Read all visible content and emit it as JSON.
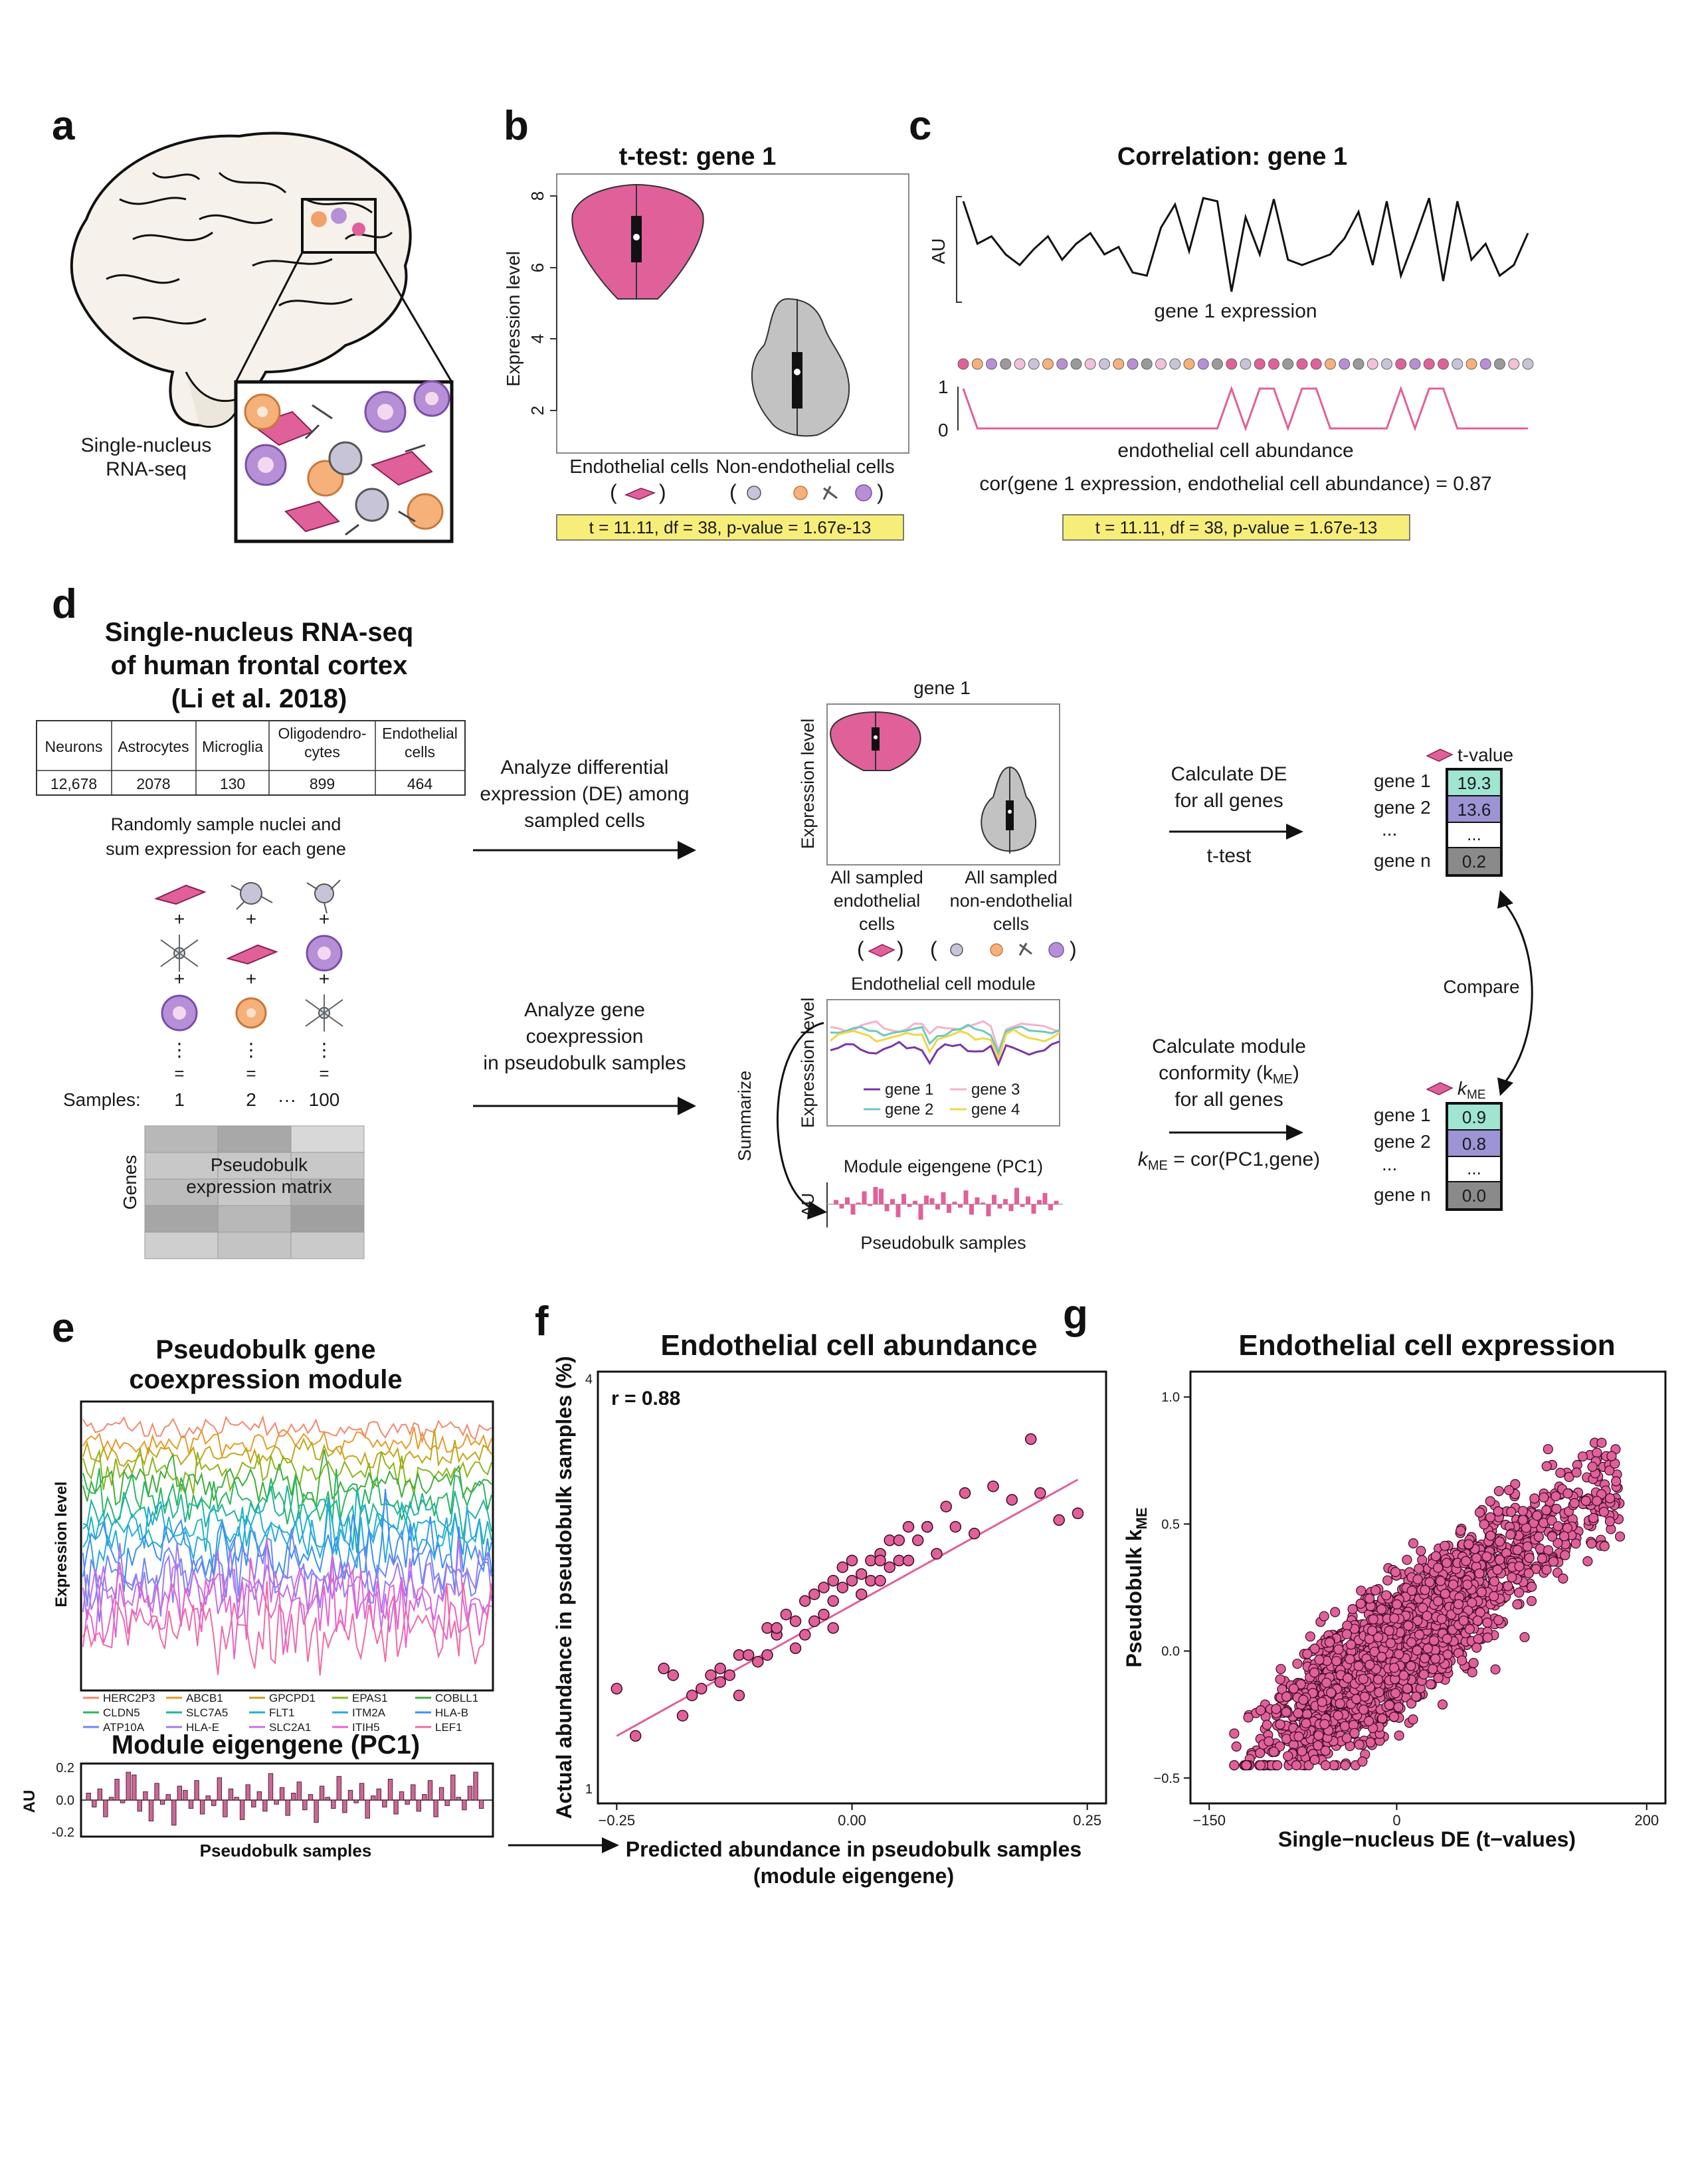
{
  "colors": {
    "endothelial": "#e0609a",
    "grey_violin": "#c2c2c2",
    "stat_box": "#f7ee7a",
    "kme_teal": "#9fe5d2",
    "kme_purple": "#9c94d4",
    "dark_cell": "#8a8a8a"
  },
  "panel_a": {
    "label": "a",
    "caption_line1": "Single-nucleus",
    "caption_line2": "RNA-seq"
  },
  "panel_b": {
    "label": "b",
    "title": "t-test: gene 1",
    "ylabel": "Expression level",
    "yticks": [
      "2",
      "4",
      "6",
      "8"
    ],
    "group1": "Endothelial cells",
    "group2": "Non-endothelial cells",
    "stat": "t = 11.11,  df = 38,  p-value = 1.67e-13"
  },
  "panel_c": {
    "label": "c",
    "title": "Correlation: gene 1",
    "au": "AU",
    "expr_label": "gene 1 expression",
    "tick1": "1",
    "tick0": "0",
    "abund_label": "endothelial cell abundance",
    "cor_text": "cor(gene 1 expression, endothelial cell abundance) = 0.87",
    "stat": "t = 11.11,  df = 38,  p-value = 1.67e-13"
  },
  "panel_d": {
    "label": "d",
    "title_line1": "Single-nucleus RNA-seq",
    "title_line2": "of human frontal cortex",
    "title_line3": "(Li et al. 2018)",
    "table_headers": [
      "Neurons",
      "Astrocytes",
      "Microglia",
      "Oligodendro-\ncytes",
      "Endothelial\ncells"
    ],
    "table_values": [
      "12,678",
      "2078",
      "130",
      "899",
      "464"
    ],
    "sample_text_line1": "Randomly sample nuclei and",
    "sample_text_line2": "sum expression for each gene",
    "samples_label": "Samples:",
    "sample_numbers": [
      "1",
      "2",
      "···",
      "100"
    ],
    "genes_label": "Genes",
    "matrix_line1": "Pseudobulk",
    "matrix_line2": "expression matrix",
    "de_arrow_line1": "Analyze differential",
    "de_arrow_line2": "expression (DE) among",
    "de_arrow_line3": "sampled cells",
    "coexp_arrow_line1": "Analyze gene",
    "coexp_arrow_line2": "coexpression",
    "coexp_arrow_line3": "in pseudobulk samples",
    "violin_title": "gene 1",
    "violin_ylabel": "Expression level",
    "violin_group1_line1": "All sampled",
    "violin_group1_line2": "endothelial",
    "violin_group1_line3": "cells",
    "violin_group2_line1": "All sampled",
    "violin_group2_line2": "non-endothelial",
    "violin_group2_line3": "cells",
    "module_title": "Endothelial cell module",
    "module_ylabel": "Expression level",
    "module_legend": [
      "gene 1",
      "gene 2",
      "gene 3",
      "gene 4"
    ],
    "summarize": "Summarize",
    "eigengene_title": "Module eigengene (PC1)",
    "eigengene_au": "AU",
    "eigengene_xlabel": "Pseudobulk samples",
    "calc_de_line1": "Calculate DE",
    "calc_de_line2": "for all genes",
    "ttest": "t-test",
    "calc_mod_line1": "Calculate module",
    "calc_mod_line2": "conformity (k",
    "calc_mod_sub": "ME",
    "calc_mod_line2_end": ")",
    "calc_mod_line3": "for all genes",
    "kme_formula_k": "k",
    "kme_formula_sub": "ME",
    "kme_formula_rest": " = cor(PC1,gene)",
    "compare": "Compare",
    "tvalue_label": "t-value",
    "kme_label_k": "k",
    "kme_label_sub": "ME",
    "t_genes": [
      "gene 1",
      "gene 2",
      "...",
      "gene n"
    ],
    "t_values": [
      "19.3",
      "13.6",
      "...",
      "0.2"
    ],
    "kme_genes": [
      "gene 1",
      "gene 2",
      "...",
      "gene n"
    ],
    "kme_values": [
      "0.9",
      "0.8",
      "...",
      "0.0"
    ]
  },
  "panel_e": {
    "label": "e",
    "title_line1": "Pseudobulk gene",
    "title_line2": "coexpression module",
    "ylabel": "Expression level",
    "legend": [
      {
        "name": "HERC2P3",
        "color": "#f4876e"
      },
      {
        "name": "ABCB1",
        "color": "#e69a2a"
      },
      {
        "name": "GPCPD1",
        "color": "#c2a51a"
      },
      {
        "name": "EPAS1",
        "color": "#8cb51c"
      },
      {
        "name": "COBLL1",
        "color": "#41ad3c"
      },
      {
        "name": "CLDN5",
        "color": "#2db563"
      },
      {
        "name": "SLC7A5",
        "color": "#21b39e"
      },
      {
        "name": "FLT1",
        "color": "#1fb3c7"
      },
      {
        "name": "ITM2A",
        "color": "#2aa8e0"
      },
      {
        "name": "HLA-B",
        "color": "#3d8ff2"
      },
      {
        "name": "ATP10A",
        "color": "#6f86f5"
      },
      {
        "name": "HLA-E",
        "color": "#9c7cf0"
      },
      {
        "name": "SLC2A1",
        "color": "#c76fe8"
      },
      {
        "name": "ITIH5",
        "color": "#e663cf"
      },
      {
        "name": "LEF1",
        "color": "#f06aa6"
      }
    ],
    "eigengene_title": "Module eigengene (PC1)",
    "au": "AU",
    "yticks": [
      "0.2",
      "0.0",
      "-0.2"
    ],
    "xlabel": "Pseudobulk samples"
  },
  "panel_f": {
    "label": "f",
    "title": "Endothelial cell abundance",
    "r_text": "r = 0.88",
    "ylabel": "Actual abundance in pseudobulk samples (%)",
    "xlabel_line1": "Predicted abundance in pseudobulk samples",
    "xlabel_line2": "(module eigengene)",
    "yticks": [
      "1",
      "4"
    ],
    "xticks": [
      "−0.25",
      "0.00",
      "0.25"
    ]
  },
  "panel_g": {
    "label": "g",
    "title": "Endothelial cell expression",
    "ylabel": "Pseudobulk k",
    "ylabel_sub": "ME",
    "xlabel": "Single−nucleus DE (t−values)",
    "yticks": [
      "1.0",
      "0.5",
      "0.0",
      "−0.5"
    ],
    "xticks": [
      "−150",
      "0",
      "200"
    ]
  },
  "chart_data": [
    {
      "type": "scatter",
      "title": "Endothelial cell abundance",
      "xlabel": "Predicted abundance in pseudobulk samples (module eigengene)",
      "ylabel": "Actual abundance in pseudobulk samples (%)",
      "xlim": [
        -0.27,
        0.27
      ],
      "ylim": [
        0.9,
        4.1
      ],
      "annotation": "r = 0.88",
      "fit_line": {
        "x": [
          -0.25,
          0.24
        ],
        "y": [
          1.4,
          3.3
        ]
      },
      "x": [
        -0.25,
        -0.23,
        -0.2,
        -0.18,
        -0.17,
        -0.16,
        -0.15,
        -0.14,
        -0.13,
        -0.12,
        -0.12,
        -0.11,
        -0.1,
        -0.09,
        -0.09,
        -0.08,
        -0.07,
        -0.06,
        -0.06,
        -0.05,
        -0.05,
        -0.04,
        -0.04,
        -0.03,
        -0.03,
        -0.02,
        -0.02,
        -0.01,
        -0.01,
        0.0,
        0.0,
        0.01,
        0.01,
        0.02,
        0.02,
        0.03,
        0.03,
        0.04,
        0.04,
        0.05,
        0.05,
        0.06,
        0.06,
        0.07,
        0.08,
        0.09,
        0.1,
        0.11,
        0.12,
        0.13,
        0.15,
        0.17,
        0.19,
        0.2,
        0.22,
        0.24,
        -0.19,
        -0.14,
        -0.08,
        -0.02,
        0.03,
        0.08
      ],
      "y": [
        1.75,
        1.4,
        1.9,
        1.55,
        1.7,
        1.75,
        1.85,
        1.8,
        1.85,
        2.0,
        1.7,
        2.0,
        1.95,
        2.2,
        2.0,
        2.15,
        2.3,
        2.05,
        2.25,
        2.4,
        2.15,
        2.45,
        2.25,
        2.5,
        2.3,
        2.55,
        2.4,
        2.65,
        2.5,
        2.7,
        2.55,
        2.6,
        2.45,
        2.7,
        2.55,
        2.75,
        2.55,
        2.85,
        2.65,
        2.85,
        2.7,
        2.95,
        2.7,
        2.85,
        2.95,
        2.75,
        3.1,
        2.95,
        3.2,
        2.9,
        3.25,
        3.15,
        3.6,
        3.2,
        3.0,
        3.05,
        1.85,
        1.9,
        2.2,
        2.2,
        2.7,
        2.95
      ]
    },
    {
      "type": "scatter",
      "title": "Endothelial cell expression",
      "xlabel": "Single−nucleus DE (t−values)",
      "ylabel": "Pseudobulk kME",
      "xlim": [
        -165,
        215
      ],
      "ylim": [
        -0.6,
        1.1
      ],
      "note": "dense cloud of several thousand genes, positively correlated; points extend to about (180, 0.8)"
    },
    {
      "type": "bar",
      "title": "Module eigengene (PC1)",
      "xlabel": "Pseudobulk samples",
      "ylabel": "AU",
      "ylim": [
        -0.25,
        0.25
      ],
      "values": [
        0.05,
        -0.05,
        0.08,
        -0.12,
        0.02,
        0.15,
        -0.02,
        0.2,
        0.18,
        -0.08,
        0.06,
        -0.15,
        0.12,
        -0.03,
        0.04,
        -0.18,
        0.1,
        0.07,
        -0.06,
        0.14,
        -0.1,
        0.03,
        -0.04,
        0.16,
        -0.12,
        0.08,
        0.02,
        -0.14,
        0.11,
        -0.05,
        0.06,
        -0.08,
        0.19,
        -0.03,
        0.09,
        -0.11,
        0.05,
        0.13,
        -0.07,
        0.04,
        -0.16,
        0.1,
        0.02,
        -0.06,
        0.17,
        -0.09,
        0.07,
        -0.02,
        0.12,
        -0.13,
        0.03,
        0.08,
        -0.05,
        0.15,
        -0.1,
        0.06,
        -0.03,
        0.11,
        -0.08,
        0.04,
        0.14,
        -0.12,
        0.09,
        -0.04,
        0.18,
        0.02,
        -0.07,
        0.1,
        0.2,
        -0.06
      ]
    },
    {
      "type": "line",
      "title": "Correlation: gene 1",
      "series": [
        {
          "name": "gene 1 expression",
          "values": [
            0.95,
            0.55,
            0.62,
            0.45,
            0.35,
            0.5,
            0.62,
            0.4,
            0.55,
            0.65,
            0.45,
            0.52,
            0.28,
            0.25,
            0.7,
            0.92,
            0.48,
            0.98,
            0.95,
            0.1,
            0.8,
            0.45,
            0.97,
            0.4,
            0.35,
            0.4,
            0.45,
            0.6,
            0.85,
            0.35,
            0.95,
            0.25,
            0.6,
            0.98,
            0.2,
            0.95,
            0.4,
            0.55,
            0.25,
            0.35,
            0.65
          ]
        },
        {
          "name": "endothelial cell abundance",
          "values": [
            1,
            0,
            0,
            0,
            0,
            0,
            0,
            0,
            0,
            0,
            0,
            0,
            0,
            0,
            0,
            0,
            0,
            0,
            0,
            1,
            0,
            1,
            1,
            0,
            1,
            1,
            0,
            0,
            0,
            0,
            0,
            1,
            0,
            1,
            1,
            0,
            0,
            0,
            0,
            0,
            0
          ]
        }
      ]
    }
  ]
}
